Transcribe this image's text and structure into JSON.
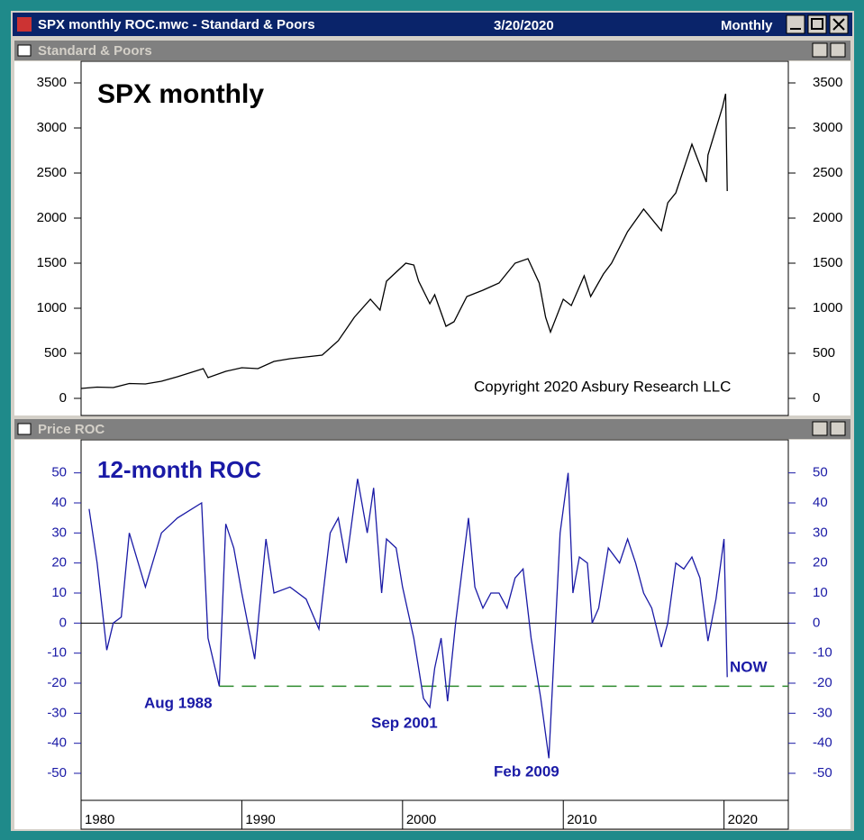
{
  "window": {
    "title": "SPX monthly ROC.mwc - Standard & Poors",
    "date": "3/20/2020",
    "period": "Monthly"
  },
  "panels": [
    {
      "title": "Standard & Poors"
    },
    {
      "title": "Price ROC"
    }
  ],
  "chart_data": [
    {
      "type": "line",
      "title": "SPX monthly",
      "color": "#000000",
      "x": [
        1980,
        1981,
        1982,
        1983,
        1984,
        1985,
        1986,
        1987.6,
        1987.9,
        1989,
        1990,
        1991,
        1992,
        1993,
        1994,
        1995,
        1996,
        1997,
        1998,
        1998.6,
        1999,
        2000.2,
        2000.7,
        2001,
        2001.7,
        2002,
        2002.7,
        2003.2,
        2004,
        2005,
        2006,
        2007,
        2007.8,
        2008.5,
        2008.9,
        2009.2,
        2010,
        2010.5,
        2011.3,
        2011.7,
        2012.5,
        2013,
        2014,
        2015,
        2016.1,
        2016.5,
        2017,
        2018,
        2018.9,
        2019,
        2019.9,
        2020.1,
        2020.2
      ],
      "values": [
        110,
        125,
        120,
        165,
        160,
        190,
        240,
        330,
        230,
        300,
        340,
        330,
        410,
        440,
        460,
        480,
        640,
        900,
        1100,
        980,
        1300,
        1500,
        1480,
        1300,
        1050,
        1150,
        800,
        850,
        1130,
        1200,
        1280,
        1500,
        1550,
        1280,
        900,
        735,
        1100,
        1030,
        1360,
        1130,
        1380,
        1500,
        1850,
        2100,
        1860,
        2170,
        2280,
        2820,
        2400,
        2700,
        3230,
        3380,
        2300
      ],
      "xlim": [
        1980,
        2024
      ],
      "ylim": [
        -190,
        3740
      ],
      "yticks": [
        0,
        500,
        1000,
        1500,
        2000,
        2500,
        3000,
        3500
      ],
      "annotations": [
        "Copyright 2020 Asbury Research LLC"
      ]
    },
    {
      "type": "line",
      "title": "12-month ROC",
      "color": "#1a1aa6",
      "x": [
        1980.5,
        1981,
        1981.6,
        1982,
        1982.5,
        1983,
        1984,
        1985,
        1986,
        1987.5,
        1987.9,
        1988.6,
        1989,
        1989.5,
        1990,
        1990.8,
        1991.5,
        1992,
        1993,
        1994,
        1994.8,
        1995.5,
        1996,
        1996.5,
        1997.2,
        1997.8,
        1998.2,
        1998.7,
        1999,
        1999.6,
        2000,
        2000.7,
        2001.3,
        2001.7,
        2002,
        2002.4,
        2002.8,
        2003.3,
        2004.1,
        2004.5,
        2005,
        2005.5,
        2006,
        2006.5,
        2007,
        2007.5,
        2008,
        2008.6,
        2009.1,
        2009.8,
        2010.3,
        2010.6,
        2011,
        2011.5,
        2011.8,
        2012.2,
        2012.8,
        2013.5,
        2014,
        2014.5,
        2015,
        2015.5,
        2016.1,
        2016.5,
        2017,
        2017.5,
        2018,
        2018.5,
        2019,
        2019.5,
        2020,
        2020.2
      ],
      "values": [
        38,
        20,
        -9,
        0,
        2,
        30,
        12,
        30,
        35,
        40,
        -5,
        -21,
        33,
        25,
        10,
        -12,
        28,
        10,
        12,
        8,
        -2,
        30,
        35,
        20,
        48,
        30,
        45,
        10,
        28,
        25,
        12,
        -5,
        -25,
        -28,
        -15,
        -5,
        -26,
        0,
        35,
        12,
        5,
        10,
        10,
        5,
        15,
        18,
        -5,
        -25,
        -45,
        30,
        50,
        10,
        22,
        20,
        0,
        5,
        25,
        20,
        28,
        20,
        10,
        5,
        -8,
        0,
        20,
        18,
        22,
        15,
        -6,
        8,
        28,
        -18
      ],
      "xlim": [
        1980,
        2024
      ],
      "ylim": [
        -59,
        61
      ],
      "yticks": [
        -50,
        -40,
        -30,
        -20,
        -10,
        0,
        10,
        20,
        30,
        40,
        50
      ],
      "xticks": [
        1980,
        1990,
        2000,
        2010,
        2020
      ],
      "zero_line": 0,
      "reference_line": {
        "value": -21,
        "color": "#2e8b2e"
      },
      "annotations": [
        "Aug 1988",
        "Sep 2001",
        "Feb 2009",
        "NOW"
      ]
    }
  ]
}
